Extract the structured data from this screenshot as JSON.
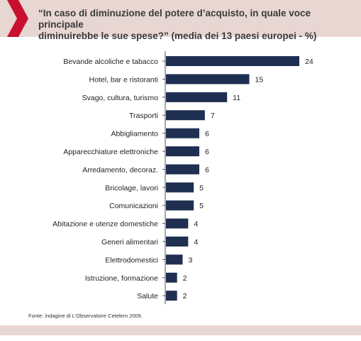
{
  "header": {
    "title_line1": "“In caso di diminuzione del potere d’acquisto, in quale voce principale",
    "title_line2": "diminuirebbe le sue spese?” (media dei 13 paesi europei - %)"
  },
  "source": "Fonte: indagine di L’Observatoire Cetelem 2009.",
  "colors": {
    "bar": "#1f2f52",
    "accent": "#c8102e",
    "band": "#e8d6d3"
  },
  "chart_data": {
    "type": "bar",
    "orientation": "horizontal",
    "title": "“In caso di diminuzione del potere d’acquisto, in quale voce principale diminuirebbe le sue spese?” (media dei 13 paesi europei - %)",
    "categories": [
      "Bevande alcoliche e tabacco",
      "Hotel, bar e ristoranti",
      "Svago, cultura, turismo",
      "Trasporti",
      "Abbigliamento",
      "Apparecchiature elettroniche",
      "Arredamento, decoraz.",
      "Bricolage, lavori",
      "Comunicazioni",
      "Abitazione e utenze domestiche",
      "Generi alimentari",
      "Elettrodomestici",
      "Istruzione, formazione",
      "Salute"
    ],
    "values": [
      24,
      15,
      11,
      7,
      6,
      6,
      6,
      5,
      5,
      4,
      4,
      3,
      2,
      2
    ],
    "xlim": [
      0,
      24
    ],
    "grid": false,
    "legend": "none"
  }
}
